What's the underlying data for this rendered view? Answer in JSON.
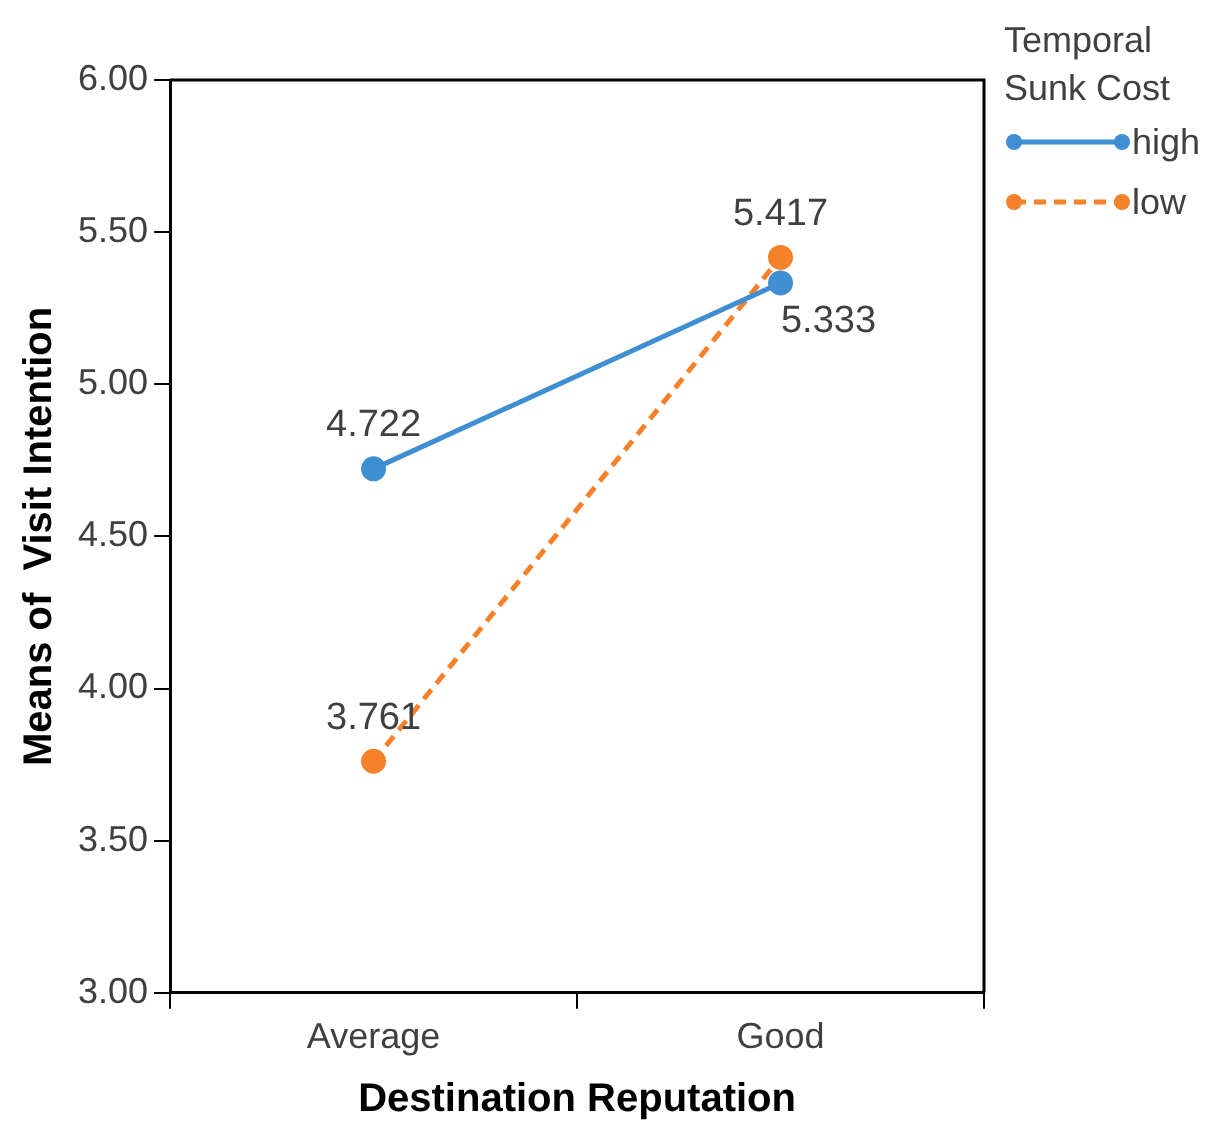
{
  "chart_data": {
    "type": "line",
    "xlabel": "Destination Reputation",
    "ylabel": "Means of  Visit Intention",
    "legend_title": "Temporal Sunk Cost",
    "categories": [
      "Average",
      "Good"
    ],
    "series": [
      {
        "name": "high",
        "color": "#3f8fd2",
        "values": [
          4.722,
          5.333
        ],
        "line_style": "solid"
      },
      {
        "name": "low",
        "color": "#f5822a",
        "values": [
          3.761,
          5.417
        ],
        "line_style": "dashed"
      }
    ],
    "ylim": [
      3,
      6
    ],
    "yticks": [
      {
        "value": 3,
        "label": "3.00"
      },
      {
        "value": 3.5,
        "label": "3.50"
      },
      {
        "value": 4,
        "label": "4.00"
      },
      {
        "value": 4.5,
        "label": "4.50"
      },
      {
        "value": 5,
        "label": "5.00"
      },
      {
        "value": 5.5,
        "label": "5.50"
      },
      {
        "value": 6,
        "label": "6.00"
      }
    ],
    "marker": "circle",
    "legend": "top right",
    "data_labels": true,
    "grid": false
  }
}
